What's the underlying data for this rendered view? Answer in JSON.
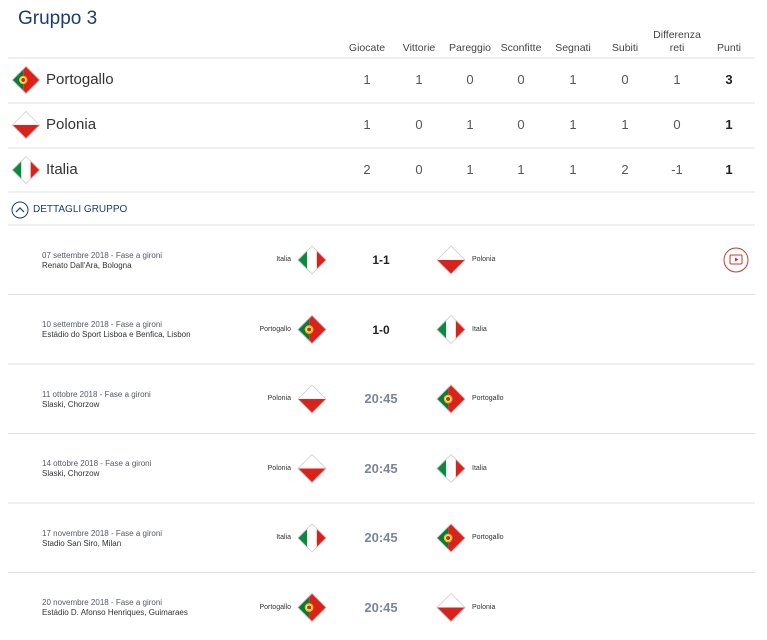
{
  "header": {
    "title": "Gruppo 3"
  },
  "table": {
    "columns": [
      "Giocate",
      "Vittorie",
      "Pareggio",
      "Sconfitte",
      "Segnati",
      "Subiti",
      "Differenza reti",
      "Punti"
    ],
    "rows": [
      {
        "team": "Portogallo",
        "stats": [
          1,
          1,
          0,
          0,
          1,
          0,
          1,
          3
        ]
      },
      {
        "team": "Polonia",
        "stats": [
          1,
          0,
          1,
          0,
          1,
          1,
          0,
          1
        ]
      },
      {
        "team": "Italia",
        "stats": [
          2,
          0,
          1,
          1,
          1,
          2,
          -1,
          1
        ]
      }
    ]
  },
  "details_toggle": "DETTAGLI GRUPPO",
  "matches": [
    {
      "date": "07 settembre 2018 - Fase a gironi",
      "venue": "Renato Dall'Ara, Bologna",
      "home": "Italia",
      "score": "1-1",
      "away": "Polonia"
    },
    {
      "date": "10 settembre 2018 - Fase a gironi",
      "venue": "Estádio do Sport Lisboa e Benfica, Lisbon",
      "home": "Portogallo",
      "score": "1-0",
      "away": "Italia"
    },
    {
      "date": "11 ottobre 2018 - Fase a gironi",
      "venue": "Slaski, Chorzow",
      "home": "Polonia",
      "score": "20:45",
      "away": "Portogallo"
    },
    {
      "date": "14 ottobre 2018 - Fase a gironi",
      "venue": "Slaski, Chorzow",
      "home": "Polonia",
      "score": "20:45",
      "away": "Italia"
    },
    {
      "date": "17 novembre 2018 - Fase a gironi",
      "venue": "Stadio San Siro, Milan",
      "home": "Italia",
      "score": "20:45",
      "away": "Portogallo"
    },
    {
      "date": "20 novembre 2018 - Fase a gironi",
      "venue": "Estádio D. Afonso Henriques, Guimaraes",
      "home": "Portogallo",
      "score": "20:45",
      "away": "Polonia"
    }
  ]
}
